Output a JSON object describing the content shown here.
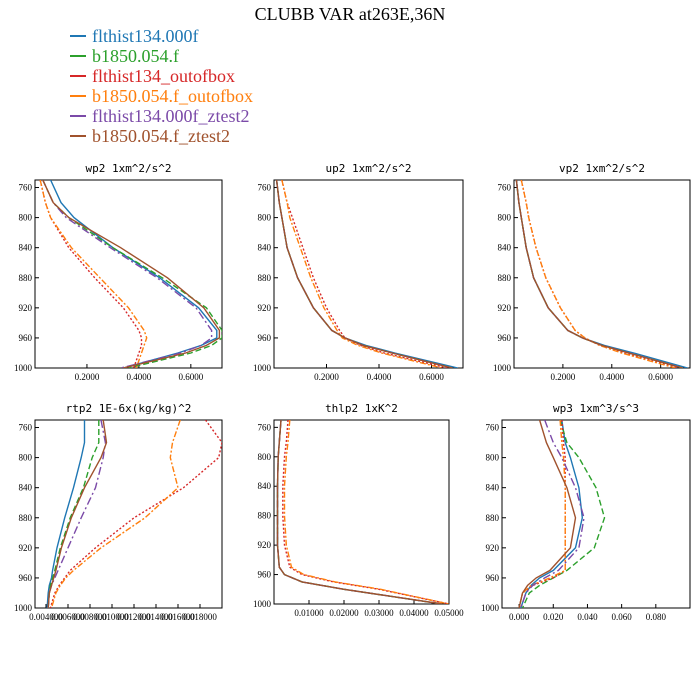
{
  "title": "CLUBB VAR at263E,36N",
  "legend": [
    {
      "name": "flthist134.000f",
      "color": "#1f77b4"
    },
    {
      "name": "b1850.054.f",
      "color": "#2ca02c"
    },
    {
      "name": "flthist134_outofbox",
      "color": "#d62728"
    },
    {
      "name": "b1850.054.f_outofbox",
      "color": "#ff7f0e"
    },
    {
      "name": "flthist134.000f_ztest2",
      "color": "#7b4aa8"
    },
    {
      "name": "b1850.054.f_ztest2",
      "color": "#a0522d"
    }
  ],
  "chart_data": [
    {
      "type": "line",
      "title": "wp2  1xm^2/s^2",
      "xlim": [
        0,
        0.72
      ],
      "ylim": [
        1000,
        750
      ],
      "xticks": [
        "0.2000",
        "0.4000",
        "0.6000"
      ],
      "xtick_values": [
        0.2,
        0.4,
        0.6
      ],
      "yticks": [
        "760",
        "800",
        "840",
        "880",
        "920",
        "960",
        "1000"
      ],
      "y": [
        750,
        780,
        800,
        840,
        880,
        920,
        950,
        960,
        970,
        980,
        1000
      ],
      "series": [
        {
          "name": "flthist134.000f",
          "x": [
            0.06,
            0.1,
            0.15,
            0.3,
            0.48,
            0.63,
            0.7,
            0.7,
            0.64,
            0.55,
            0.34
          ]
        },
        {
          "name": "b1850.054.f",
          "x": [
            0.03,
            0.07,
            0.13,
            0.3,
            0.49,
            0.66,
            0.72,
            0.72,
            0.68,
            0.6,
            0.36
          ]
        },
        {
          "name": "flthist134_outofbox",
          "x": [
            0.02,
            0.04,
            0.06,
            0.13,
            0.23,
            0.34,
            0.4,
            0.41,
            0.41,
            0.4,
            0.38
          ]
        },
        {
          "name": "b1850.054.f_outofbox",
          "x": [
            0.02,
            0.04,
            0.06,
            0.14,
            0.25,
            0.36,
            0.42,
            0.43,
            0.42,
            0.41,
            0.39
          ]
        },
        {
          "name": "flthist134.000f_ztest2",
          "x": [
            0.03,
            0.07,
            0.12,
            0.29,
            0.47,
            0.62,
            0.68,
            0.68,
            0.64,
            0.56,
            0.33
          ]
        },
        {
          "name": "b1850.054.f_ztest2",
          "x": [
            0.03,
            0.07,
            0.13,
            0.33,
            0.51,
            0.65,
            0.71,
            0.71,
            0.66,
            0.58,
            0.34
          ]
        }
      ]
    },
    {
      "type": "line",
      "title": "up2  1xm^2/s^2",
      "xlim": [
        0,
        0.72
      ],
      "ylim": [
        1000,
        750
      ],
      "xticks": [
        "0.2000",
        "0.4000",
        "0.6000"
      ],
      "xtick_values": [
        0.2,
        0.4,
        0.6
      ],
      "yticks": [
        "760",
        "800",
        "840",
        "880",
        "920",
        "960",
        "1000"
      ],
      "y": [
        750,
        780,
        800,
        840,
        880,
        920,
        950,
        960,
        970,
        980,
        1000
      ],
      "series": [
        {
          "name": "flthist134.000f",
          "x": [
            0.01,
            0.02,
            0.03,
            0.05,
            0.09,
            0.15,
            0.22,
            0.27,
            0.35,
            0.46,
            0.7
          ]
        },
        {
          "name": "b1850.054.f",
          "x": [
            0.01,
            0.02,
            0.03,
            0.05,
            0.09,
            0.15,
            0.22,
            0.27,
            0.34,
            0.45,
            0.68
          ]
        },
        {
          "name": "flthist134_outofbox",
          "x": [
            0.03,
            0.05,
            0.07,
            0.11,
            0.15,
            0.2,
            0.25,
            0.27,
            0.33,
            0.42,
            0.66
          ]
        },
        {
          "name": "b1850.054.f_outofbox",
          "x": [
            0.03,
            0.05,
            0.06,
            0.1,
            0.14,
            0.19,
            0.24,
            0.26,
            0.32,
            0.41,
            0.64
          ]
        },
        {
          "name": "flthist134.000f_ztest2",
          "x": [
            0.01,
            0.02,
            0.03,
            0.05,
            0.09,
            0.15,
            0.22,
            0.27,
            0.34,
            0.45,
            0.68
          ]
        },
        {
          "name": "b1850.054.f_ztest2",
          "x": [
            0.01,
            0.02,
            0.03,
            0.05,
            0.09,
            0.15,
            0.22,
            0.27,
            0.34,
            0.45,
            0.68
          ]
        }
      ]
    },
    {
      "type": "line",
      "title": "vp2  1xm^2/s^2",
      "xlim": [
        0,
        0.72
      ],
      "ylim": [
        1000,
        750
      ],
      "xticks": [
        "0.2000",
        "0.4000",
        "0.6000"
      ],
      "xtick_values": [
        0.2,
        0.4,
        0.6
      ],
      "yticks": [
        "760",
        "800",
        "840",
        "880",
        "920",
        "960",
        "1000"
      ],
      "y": [
        750,
        780,
        800,
        840,
        880,
        920,
        950,
        960,
        970,
        980,
        1000
      ],
      "series": [
        {
          "name": "flthist134.000f",
          "x": [
            0.01,
            0.02,
            0.03,
            0.05,
            0.08,
            0.14,
            0.22,
            0.28,
            0.37,
            0.49,
            0.71
          ]
        },
        {
          "name": "b1850.054.f",
          "x": [
            0.01,
            0.02,
            0.03,
            0.05,
            0.08,
            0.14,
            0.22,
            0.28,
            0.36,
            0.47,
            0.69
          ]
        },
        {
          "name": "flthist134_outofbox",
          "x": [
            0.03,
            0.05,
            0.06,
            0.09,
            0.13,
            0.19,
            0.25,
            0.29,
            0.35,
            0.45,
            0.67
          ]
        },
        {
          "name": "b1850.054.f_outofbox",
          "x": [
            0.03,
            0.05,
            0.06,
            0.09,
            0.13,
            0.19,
            0.25,
            0.29,
            0.35,
            0.44,
            0.66
          ]
        },
        {
          "name": "flthist134.000f_ztest2",
          "x": [
            0.01,
            0.02,
            0.03,
            0.05,
            0.08,
            0.14,
            0.22,
            0.28,
            0.36,
            0.47,
            0.69
          ]
        },
        {
          "name": "b1850.054.f_ztest2",
          "x": [
            0.01,
            0.02,
            0.03,
            0.05,
            0.08,
            0.14,
            0.22,
            0.28,
            0.36,
            0.47,
            0.69
          ]
        }
      ]
    },
    {
      "type": "line",
      "title": "rtp2  1E-6x(kg/kg)^2",
      "xlim": [
        0.003,
        0.02
      ],
      "ylim": [
        1000,
        750
      ],
      "xticks": [
        "0.004000",
        "0.006000",
        "0.008000",
        "0.010000",
        "0.012000",
        "0.014000",
        "0.016000",
        "0.018000"
      ],
      "xtick_values": [
        0.004,
        0.006,
        0.008,
        0.01,
        0.012,
        0.014,
        0.016,
        0.018
      ],
      "yticks": [
        "760",
        "800",
        "840",
        "880",
        "920",
        "960",
        "1000"
      ],
      "y": [
        750,
        780,
        800,
        840,
        880,
        920,
        950,
        960,
        970,
        980,
        1000
      ],
      "series": [
        {
          "name": "flthist134.000f",
          "x": [
            0.0075,
            0.0075,
            0.0072,
            0.0065,
            0.0057,
            0.005,
            0.0046,
            0.0045,
            0.0043,
            0.0042,
            0.0041
          ]
        },
        {
          "name": "b1850.054.f",
          "x": [
            0.0088,
            0.0088,
            0.0082,
            0.0074,
            0.0062,
            0.0053,
            0.0048,
            0.0046,
            0.0044,
            0.0043,
            0.0042
          ]
        },
        {
          "name": "flthist134_outofbox",
          "x": [
            0.0185,
            0.02,
            0.0197,
            0.0165,
            0.012,
            0.0085,
            0.0062,
            0.0057,
            0.0052,
            0.0048,
            0.0044
          ]
        },
        {
          "name": "b1850.054.f_outofbox",
          "x": [
            0.0162,
            0.0155,
            0.0153,
            0.016,
            0.013,
            0.009,
            0.0065,
            0.0058,
            0.0053,
            0.0049,
            0.0045
          ]
        },
        {
          "name": "flthist134.000f_ztest2",
          "x": [
            0.009,
            0.0094,
            0.0092,
            0.0085,
            0.0072,
            0.006,
            0.0051,
            0.0048,
            0.0045,
            0.0043,
            0.0042
          ]
        },
        {
          "name": "b1850.054.f_ztest2",
          "x": [
            0.0092,
            0.0095,
            0.009,
            0.0075,
            0.0063,
            0.0054,
            0.0049,
            0.0047,
            0.0045,
            0.0043,
            0.0042
          ]
        }
      ]
    },
    {
      "type": "line",
      "title": "thlp2  1xK^2",
      "xlim": [
        0,
        0.05
      ],
      "ylim": [
        1000,
        750
      ],
      "xticks": [
        "0.01000",
        "0.02000",
        "0.03000",
        "0.04000",
        "0.05000"
      ],
      "xtick_values": [
        0.01,
        0.02,
        0.03,
        0.04,
        0.05
      ],
      "yticks": [
        "760",
        "800",
        "840",
        "880",
        "920",
        "960",
        "1000"
      ],
      "y": [
        750,
        780,
        800,
        840,
        880,
        920,
        950,
        960,
        970,
        980,
        1000
      ],
      "series": [
        {
          "name": "flthist134.000f",
          "x": [
            0.002,
            0.0015,
            0.0012,
            0.001,
            0.001,
            0.001,
            0.0015,
            0.003,
            0.008,
            0.02,
            0.048
          ]
        },
        {
          "name": "b1850.054.f",
          "x": [
            0.002,
            0.0015,
            0.0012,
            0.001,
            0.001,
            0.001,
            0.0015,
            0.003,
            0.008,
            0.02,
            0.048
          ]
        },
        {
          "name": "flthist134_outofbox",
          "x": [
            0.004,
            0.0035,
            0.003,
            0.0025,
            0.0025,
            0.003,
            0.0045,
            0.008,
            0.017,
            0.03,
            0.05
          ]
        },
        {
          "name": "b1850.054.f_outofbox",
          "x": [
            0.0045,
            0.004,
            0.0035,
            0.003,
            0.003,
            0.0035,
            0.005,
            0.0085,
            0.0175,
            0.0305,
            0.05
          ]
        },
        {
          "name": "flthist134.000f_ztest2",
          "x": [
            0.002,
            0.0015,
            0.0012,
            0.001,
            0.001,
            0.001,
            0.0015,
            0.003,
            0.008,
            0.02,
            0.048
          ]
        },
        {
          "name": "b1850.054.f_ztest2",
          "x": [
            0.002,
            0.0015,
            0.0012,
            0.001,
            0.001,
            0.001,
            0.0015,
            0.003,
            0.008,
            0.02,
            0.048
          ]
        }
      ]
    },
    {
      "type": "line",
      "title": "wp3  1xm^3/s^3",
      "xlim": [
        -0.01,
        0.1
      ],
      "ylim": [
        1000,
        750
      ],
      "xticks": [
        "0.000",
        "0.020",
        "0.040",
        "0.060",
        "0.080"
      ],
      "xtick_values": [
        0,
        0.02,
        0.04,
        0.06,
        0.08
      ],
      "yticks": [
        "760",
        "800",
        "840",
        "880",
        "920",
        "960",
        "1000"
      ],
      "y": [
        750,
        780,
        800,
        840,
        880,
        920,
        950,
        960,
        970,
        980,
        1000
      ],
      "series": [
        {
          "name": "flthist134.000f",
          "x": [
            0.025,
            0.027,
            0.03,
            0.035,
            0.037,
            0.033,
            0.02,
            0.012,
            0.007,
            0.004,
            0.001
          ]
        },
        {
          "name": "b1850.054.f",
          "x": [
            0.024,
            0.028,
            0.035,
            0.045,
            0.05,
            0.044,
            0.028,
            0.02,
            0.012,
            0.006,
            0.002
          ]
        },
        {
          "name": "flthist134_outofbox",
          "x": [
            0.025,
            0.026,
            0.027,
            0.027,
            0.027,
            0.027,
            0.027,
            0.02,
            0.008,
            0.002,
            0.0
          ]
        },
        {
          "name": "b1850.054.f_outofbox",
          "x": [
            0.024,
            0.025,
            0.026,
            0.027,
            0.027,
            0.027,
            0.027,
            0.018,
            0.007,
            0.002,
            0.0
          ]
        },
        {
          "name": "flthist134.000f_ztest2",
          "x": [
            0.015,
            0.02,
            0.025,
            0.033,
            0.038,
            0.035,
            0.023,
            0.015,
            0.008,
            0.004,
            0.001
          ]
        },
        {
          "name": "b1850.054.f_ztest2",
          "x": [
            0.012,
            0.016,
            0.02,
            0.028,
            0.033,
            0.03,
            0.018,
            0.01,
            0.005,
            0.002,
            0.0
          ]
        }
      ]
    }
  ]
}
